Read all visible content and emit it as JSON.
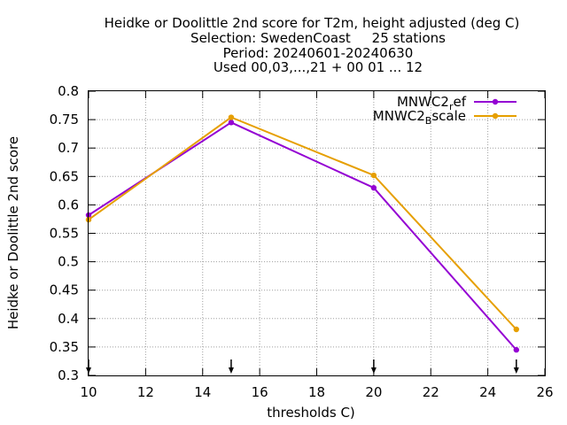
{
  "chart_data": {
    "type": "line",
    "title_lines": [
      "Heidke or Doolittle 2nd score  for T2m, height adjusted (deg C)",
      "Selection: SwedenCoast     25 stations",
      "Period: 20240601-20240630",
      "Used 00,03,...,21 + 00 01 ... 12"
    ],
    "xlabel": "thresholds C)",
    "ylabel": "Heidke or Doolittle 2nd score",
    "xlim": [
      10,
      26
    ],
    "ylim": [
      0.3,
      0.8
    ],
    "xticks": [
      10,
      12,
      14,
      16,
      18,
      20,
      22,
      24,
      26
    ],
    "yticks": [
      "0.3",
      "0.35",
      "0.4",
      "0.45",
      "0.5",
      "0.55",
      "0.6",
      "0.65",
      "0.7",
      "0.75",
      "0.8"
    ],
    "grid": true,
    "legend_position": "top-right",
    "x": [
      10,
      15,
      20,
      25
    ],
    "series": [
      {
        "name_main": "MNWC2",
        "name_sub": "r",
        "name_rest": "ef",
        "color": "#9400d3",
        "values": [
          0.582,
          0.745,
          0.63,
          0.345
        ]
      },
      {
        "name_main": "MNWC2",
        "name_sub": "B",
        "name_rest": "scale",
        "color": "#e69f00",
        "values": [
          0.574,
          0.754,
          0.652,
          0.381
        ]
      }
    ],
    "arrow_marks_x": [
      10,
      15,
      20,
      25
    ]
  }
}
